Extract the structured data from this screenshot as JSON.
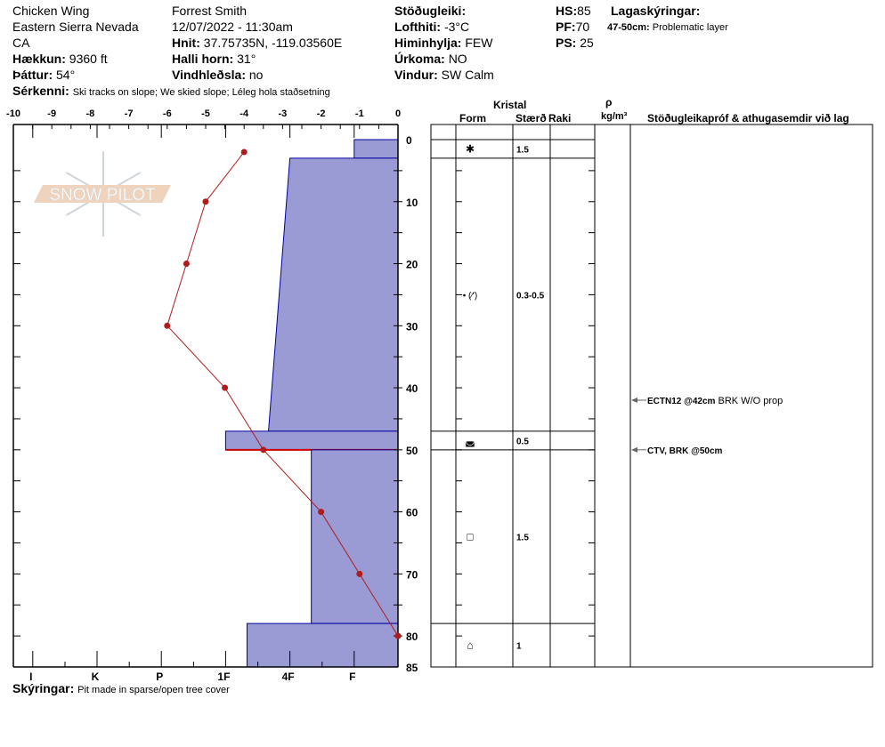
{
  "header": {
    "site": "Chicken Wing",
    "range": "Eastern Sierra Nevada",
    "state": "CA",
    "elevation_label": "Hækkun:",
    "elevation": "9360 ft",
    "aspect_label": "Þáttur:",
    "aspect": "54°",
    "observer": "Forrest Smith",
    "datetime": "12/07/2022 - 11:30am",
    "coords_label": "Hnit:",
    "coords": "37.75735N, -119.03560E",
    "slope_label": "Halli horn:",
    "slope": "31°",
    "wind_loading_label": "Vindhleðsla:",
    "wind_loading": "no",
    "stability_label": "Stöðugleiki:",
    "stability": "",
    "air_temp_label": "Lofthiti:",
    "air_temp": "-3°C",
    "sky_label": "Himinhylja:",
    "sky": "FEW",
    "precip_label": "Úrkoma:",
    "precip": "NO",
    "wind_label": "Vindur:",
    "wind": "SW Calm",
    "hs_label": "HS:",
    "hs": "85",
    "pf_label": "PF:",
    "pf": "70",
    "ps_label": "PS: ",
    "ps": "25",
    "layer_notes_label": "Lagaskýringar:",
    "layer_note_depth": "47-50cm:",
    "layer_note": "Problematic layer",
    "features_label": "Sérkenni:",
    "features": "Ski tracks on slope; We skied slope; Léleg hola staðsetning",
    "comments_label": "Skýringar:",
    "comments": "Pit made in sparse/open tree cover"
  },
  "logo_text": "SNOW PILOT",
  "table_headers": {
    "crystal": "Kristal",
    "form": "Form",
    "size": "Stærð",
    "moisture": "Raki",
    "density_symbol": "ρ",
    "density_unit": "kg/m³",
    "stability_comments": "Stöðugleikapróf & athugasemdir við lag"
  },
  "colors": {
    "layer_fill": "#9a9ad4",
    "layer_stroke": "#0000a0",
    "temp_line": "#b01c1c",
    "problem_line": "#cc0000"
  },
  "chart_data": {
    "type": "snow-profile",
    "temperature_axis": {
      "ticks": [
        "-10",
        "-9",
        "-8",
        "-7",
        "-6",
        "-5",
        "-4",
        "-3",
        "-2",
        "-1",
        "0"
      ],
      "range": [
        -10,
        0
      ]
    },
    "depth_axis": {
      "ticks": [
        "0",
        "10",
        "20",
        "30",
        "40",
        "50",
        "60",
        "70",
        "80",
        "85"
      ],
      "range": [
        0,
        85
      ]
    },
    "hardness_axis": {
      "ticks": [
        "I",
        "K",
        "P",
        "1F",
        "4F",
        "F"
      ]
    },
    "temperature_profile": [
      {
        "depth": 2,
        "temp": -4
      },
      {
        "depth": 10,
        "temp": -5
      },
      {
        "depth": 20,
        "temp": -5.5
      },
      {
        "depth": 30,
        "temp": -6
      },
      {
        "depth": 40,
        "temp": -4.5
      },
      {
        "depth": 50,
        "temp": -3.5
      },
      {
        "depth": 60,
        "temp": -2
      },
      {
        "depth": 70,
        "temp": -1
      },
      {
        "depth": 80,
        "temp": 0
      }
    ],
    "layers": [
      {
        "top": 0,
        "bottom": 3,
        "hardness_top": "F",
        "hardness_bottom": "F",
        "form": "✱",
        "size": "1.5"
      },
      {
        "top": 3,
        "bottom": 47,
        "hardness_top": "4F",
        "hardness_bottom": "4F+",
        "form": "• (⁄′)",
        "size": "0.3-0.5"
      },
      {
        "top": 47,
        "bottom": 50,
        "hardness_top": "1F",
        "hardness_bottom": "1F",
        "form": "◛",
        "size": "0.5",
        "problematic": true
      },
      {
        "top": 50,
        "bottom": 78,
        "hardness_top": "4F-",
        "hardness_bottom": "4F-",
        "form": "□",
        "size": "1.5"
      },
      {
        "top": 78,
        "bottom": 85,
        "hardness_top": "1F-",
        "hardness_bottom": "1F-",
        "form": "⌂",
        "size": "1"
      }
    ],
    "stability_tests": [
      {
        "depth": 42,
        "bold": "ECTN12 @42cm",
        "text": "BRK W/O prop"
      },
      {
        "depth": 50,
        "bold": "CTV, BRK @50cm",
        "text": ""
      }
    ]
  }
}
